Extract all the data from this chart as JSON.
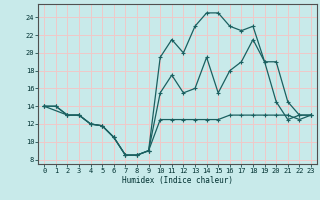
{
  "title": "",
  "xlabel": "Humidex (Indice chaleur)",
  "ylabel": "",
  "xlim": [
    -0.5,
    23.5
  ],
  "ylim": [
    7.5,
    25.5
  ],
  "xticks": [
    0,
    1,
    2,
    3,
    4,
    5,
    6,
    7,
    8,
    9,
    10,
    11,
    12,
    13,
    14,
    15,
    16,
    17,
    18,
    19,
    20,
    21,
    22,
    23
  ],
  "yticks": [
    8,
    10,
    12,
    14,
    16,
    18,
    20,
    22,
    24
  ],
  "bg_color": "#c8eaea",
  "grid_color": "#f0c8c8",
  "line_color": "#1a6060",
  "line1_x": [
    0,
    1,
    2,
    3,
    4,
    5,
    6,
    7,
    8,
    9,
    10,
    11,
    12,
    13,
    14,
    15,
    16,
    17,
    18,
    19,
    20,
    21,
    22,
    23
  ],
  "line1_y": [
    14.0,
    14.0,
    13.0,
    13.0,
    12.0,
    11.8,
    10.5,
    8.5,
    8.5,
    9.0,
    12.5,
    12.5,
    12.5,
    12.5,
    12.5,
    12.5,
    13.0,
    13.0,
    13.0,
    13.0,
    13.0,
    13.0,
    12.5,
    13.0
  ],
  "line2_x": [
    0,
    2,
    3,
    4,
    5,
    6,
    7,
    8,
    9,
    10,
    11,
    12,
    13,
    14,
    15,
    16,
    17,
    18,
    19,
    20,
    21,
    22,
    23
  ],
  "line2_y": [
    14.0,
    13.0,
    13.0,
    12.0,
    11.8,
    10.5,
    8.5,
    8.5,
    9.0,
    15.5,
    17.5,
    15.5,
    16.0,
    19.5,
    15.5,
    18.0,
    19.0,
    21.5,
    19.0,
    19.0,
    14.5,
    13.0,
    13.0
  ],
  "line3_x": [
    0,
    1,
    2,
    3,
    4,
    5,
    6,
    7,
    8,
    9,
    10,
    11,
    12,
    13,
    14,
    15,
    16,
    17,
    18,
    19,
    20,
    21,
    22,
    23
  ],
  "line3_y": [
    14.0,
    14.0,
    13.0,
    13.0,
    12.0,
    11.8,
    10.5,
    8.5,
    8.5,
    9.0,
    19.5,
    21.5,
    20.0,
    23.0,
    24.5,
    24.5,
    23.0,
    22.5,
    23.0,
    19.0,
    14.5,
    12.5,
    13.0,
    13.0
  ]
}
